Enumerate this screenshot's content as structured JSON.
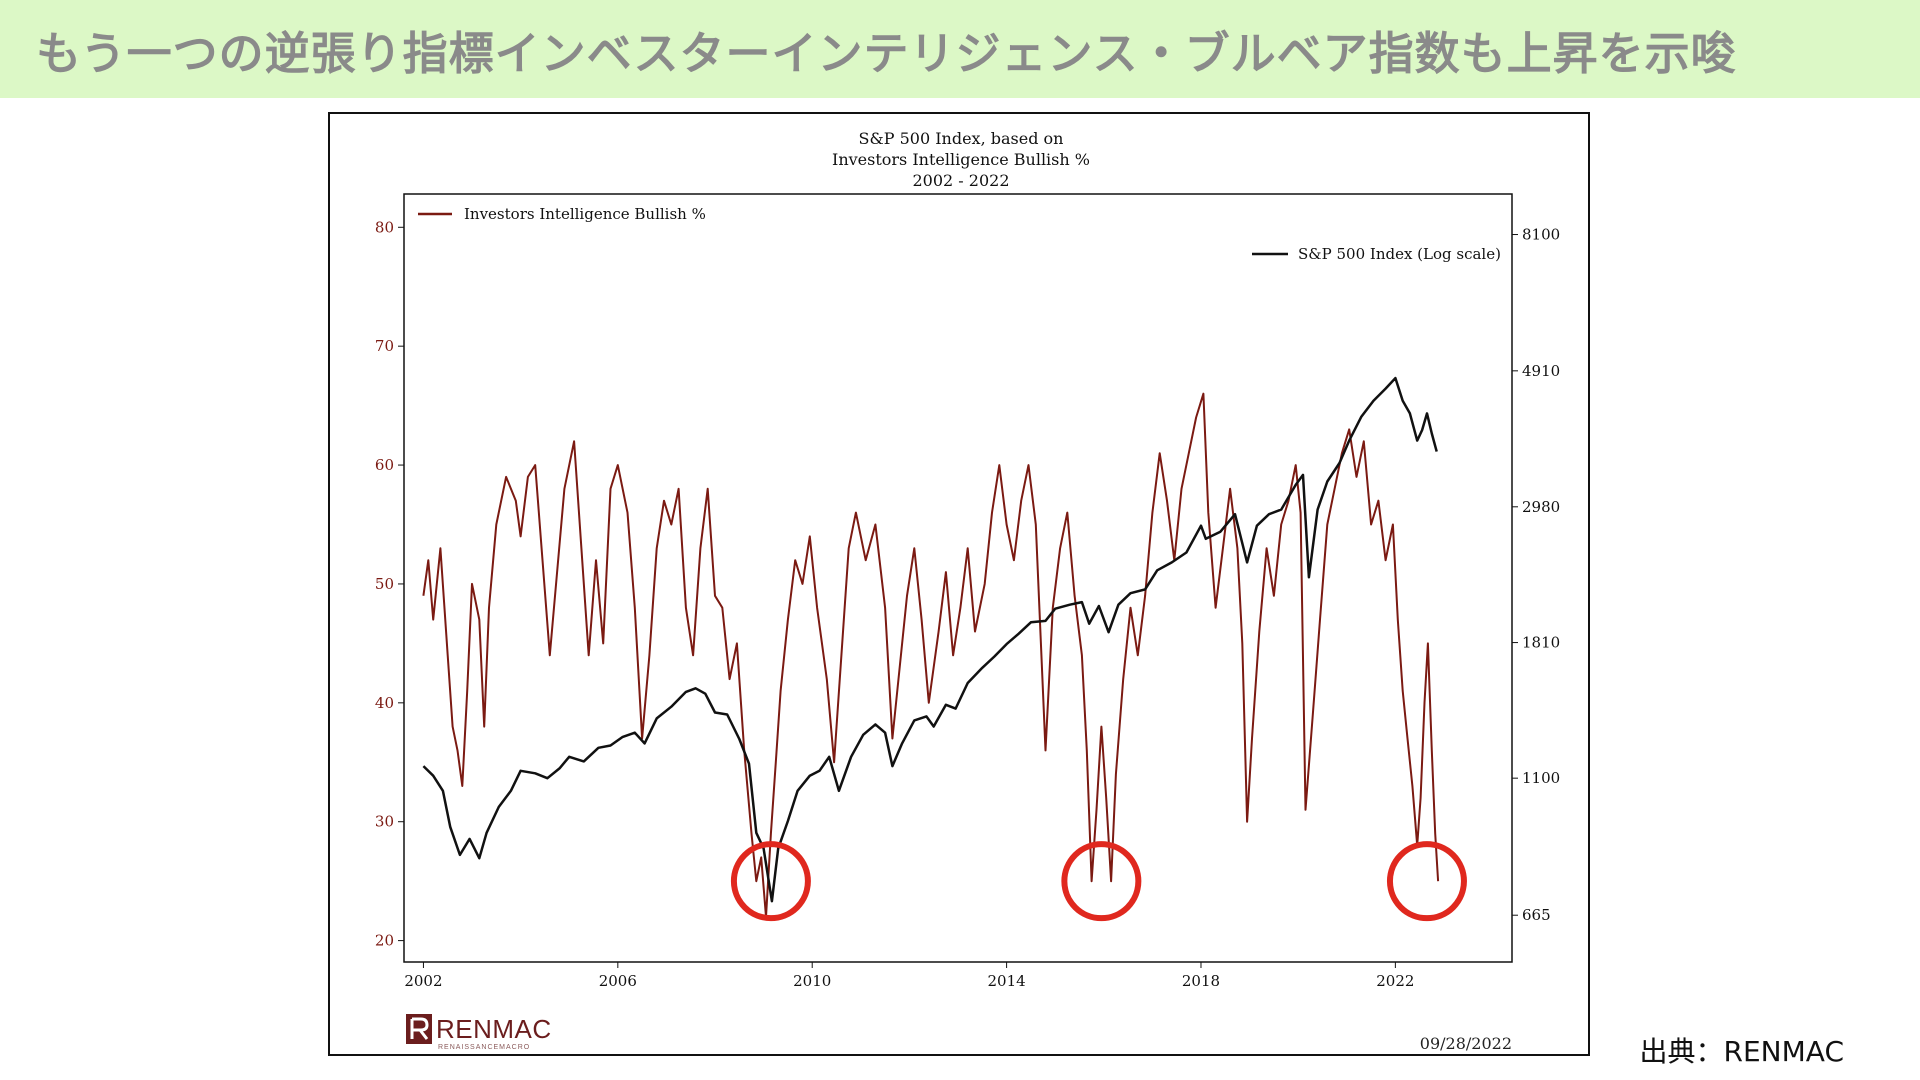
{
  "slide": {
    "title": "もう一つの逆張り指標インベスターインテリジェンス・ブルベア指数も上昇を示唆",
    "source": "出典：RENMAC"
  },
  "brand": {
    "logo_text": "RENMAC",
    "logo_subtext": "RENAISSANCEMACRO",
    "chart_date": "09/28/2022"
  },
  "colors": {
    "bullish": "#7b1a12",
    "sp500": "#111111",
    "circle": "#e0281e",
    "banner": "#dcf8c6"
  },
  "chart_data": {
    "type": "line",
    "title": [
      "S&P 500 Index, based on",
      "Investors Intelligence Bullish %",
      "2002 - 2022"
    ],
    "x_ticks": [
      "2002",
      "2006",
      "2010",
      "2014",
      "2018",
      "2022"
    ],
    "xlim": [
      2001.6,
      2024.4
    ],
    "left_axis": {
      "ticks": [
        "80",
        "70",
        "60",
        "50",
        "40",
        "30",
        "20"
      ],
      "ylim": [
        18.2,
        82.8
      ]
    },
    "right_axis": {
      "ticks": [
        "8100",
        "4910",
        "2980",
        "1810",
        "1100",
        "665"
      ],
      "scale": "log",
      "ylim": [
        560,
        9400
      ]
    },
    "series": [
      {
        "name": "Investors Intelligence Bullish %",
        "axis": "left",
        "points": [
          [
            2002.0,
            49
          ],
          [
            2002.1,
            52
          ],
          [
            2002.2,
            47
          ],
          [
            2002.35,
            53
          ],
          [
            2002.5,
            44
          ],
          [
            2002.6,
            38
          ],
          [
            2002.7,
            36
          ],
          [
            2002.8,
            33
          ],
          [
            2002.9,
            41
          ],
          [
            2003.0,
            50
          ],
          [
            2003.15,
            47
          ],
          [
            2003.25,
            38
          ],
          [
            2003.35,
            48
          ],
          [
            2003.5,
            55
          ],
          [
            2003.7,
            59
          ],
          [
            2003.9,
            57
          ],
          [
            2004.0,
            54
          ],
          [
            2004.15,
            59
          ],
          [
            2004.3,
            60
          ],
          [
            2004.45,
            52
          ],
          [
            2004.6,
            44
          ],
          [
            2004.75,
            51
          ],
          [
            2004.9,
            58
          ],
          [
            2005.1,
            62
          ],
          [
            2005.25,
            53
          ],
          [
            2005.4,
            44
          ],
          [
            2005.55,
            52
          ],
          [
            2005.7,
            45
          ],
          [
            2005.85,
            58
          ],
          [
            2006.0,
            60
          ],
          [
            2006.2,
            56
          ],
          [
            2006.35,
            48
          ],
          [
            2006.5,
            37
          ],
          [
            2006.65,
            44
          ],
          [
            2006.8,
            53
          ],
          [
            2006.95,
            57
          ],
          [
            2007.1,
            55
          ],
          [
            2007.25,
            58
          ],
          [
            2007.4,
            48
          ],
          [
            2007.55,
            44
          ],
          [
            2007.7,
            53
          ],
          [
            2007.85,
            58
          ],
          [
            2008.0,
            49
          ],
          [
            2008.15,
            48
          ],
          [
            2008.3,
            42
          ],
          [
            2008.45,
            45
          ],
          [
            2008.6,
            36
          ],
          [
            2008.75,
            29
          ],
          [
            2008.85,
            25
          ],
          [
            2008.95,
            27
          ],
          [
            2009.05,
            22
          ],
          [
            2009.15,
            29
          ],
          [
            2009.25,
            35
          ],
          [
            2009.35,
            41
          ],
          [
            2009.5,
            47
          ],
          [
            2009.65,
            52
          ],
          [
            2009.8,
            50
          ],
          [
            2009.95,
            54
          ],
          [
            2010.1,
            48
          ],
          [
            2010.3,
            42
          ],
          [
            2010.45,
            35
          ],
          [
            2010.6,
            44
          ],
          [
            2010.75,
            53
          ],
          [
            2010.9,
            56
          ],
          [
            2011.1,
            52
          ],
          [
            2011.3,
            55
          ],
          [
            2011.5,
            48
          ],
          [
            2011.65,
            37
          ],
          [
            2011.8,
            43
          ],
          [
            2011.95,
            49
          ],
          [
            2012.1,
            53
          ],
          [
            2012.25,
            47
          ],
          [
            2012.4,
            40
          ],
          [
            2012.6,
            46
          ],
          [
            2012.75,
            51
          ],
          [
            2012.9,
            44
          ],
          [
            2013.05,
            48
          ],
          [
            2013.2,
            53
          ],
          [
            2013.35,
            46
          ],
          [
            2013.55,
            50
          ],
          [
            2013.7,
            56
          ],
          [
            2013.85,
            60
          ],
          [
            2014.0,
            55
          ],
          [
            2014.15,
            52
          ],
          [
            2014.3,
            57
          ],
          [
            2014.45,
            60
          ],
          [
            2014.6,
            55
          ],
          [
            2014.8,
            36
          ],
          [
            2014.95,
            48
          ],
          [
            2015.1,
            53
          ],
          [
            2015.25,
            56
          ],
          [
            2015.4,
            49
          ],
          [
            2015.55,
            44
          ],
          [
            2015.65,
            36
          ],
          [
            2015.75,
            25
          ],
          [
            2015.85,
            31
          ],
          [
            2015.95,
            38
          ],
          [
            2016.05,
            32
          ],
          [
            2016.15,
            25
          ],
          [
            2016.25,
            34
          ],
          [
            2016.4,
            42
          ],
          [
            2016.55,
            48
          ],
          [
            2016.7,
            44
          ],
          [
            2016.85,
            49
          ],
          [
            2017.0,
            56
          ],
          [
            2017.15,
            61
          ],
          [
            2017.3,
            57
          ],
          [
            2017.45,
            52
          ],
          [
            2017.6,
            58
          ],
          [
            2017.75,
            61
          ],
          [
            2017.9,
            64
          ],
          [
            2018.05,
            66
          ],
          [
            2018.15,
            56
          ],
          [
            2018.3,
            48
          ],
          [
            2018.45,
            53
          ],
          [
            2018.6,
            58
          ],
          [
            2018.75,
            53
          ],
          [
            2018.85,
            45
          ],
          [
            2018.95,
            30
          ],
          [
            2019.05,
            37
          ],
          [
            2019.2,
            46
          ],
          [
            2019.35,
            53
          ],
          [
            2019.5,
            49
          ],
          [
            2019.65,
            55
          ],
          [
            2019.8,
            57
          ],
          [
            2019.95,
            60
          ],
          [
            2020.05,
            56
          ],
          [
            2020.15,
            31
          ],
          [
            2020.3,
            39
          ],
          [
            2020.45,
            47
          ],
          [
            2020.6,
            55
          ],
          [
            2020.75,
            58
          ],
          [
            2020.9,
            61
          ],
          [
            2021.05,
            63
          ],
          [
            2021.2,
            59
          ],
          [
            2021.35,
            62
          ],
          [
            2021.5,
            55
          ],
          [
            2021.65,
            57
          ],
          [
            2021.8,
            52
          ],
          [
            2021.95,
            55
          ],
          [
            2022.05,
            47
          ],
          [
            2022.15,
            41
          ],
          [
            2022.25,
            37
          ],
          [
            2022.35,
            33
          ],
          [
            2022.45,
            28
          ],
          [
            2022.52,
            32
          ],
          [
            2022.6,
            40
          ],
          [
            2022.67,
            45
          ],
          [
            2022.75,
            36
          ],
          [
            2022.82,
            29
          ],
          [
            2022.88,
            25
          ]
        ]
      },
      {
        "name": "S&P 500 Index (Log scale)",
        "axis": "right",
        "points": [
          [
            2002.0,
            1150
          ],
          [
            2002.2,
            1110
          ],
          [
            2002.4,
            1050
          ],
          [
            2002.55,
            920
          ],
          [
            2002.75,
            830
          ],
          [
            2002.95,
            880
          ],
          [
            2003.15,
            820
          ],
          [
            2003.3,
            900
          ],
          [
            2003.55,
            990
          ],
          [
            2003.8,
            1050
          ],
          [
            2004.0,
            1130
          ],
          [
            2004.3,
            1120
          ],
          [
            2004.55,
            1100
          ],
          [
            2004.8,
            1140
          ],
          [
            2005.0,
            1190
          ],
          [
            2005.3,
            1170
          ],
          [
            2005.6,
            1230
          ],
          [
            2005.85,
            1240
          ],
          [
            2006.1,
            1280
          ],
          [
            2006.35,
            1300
          ],
          [
            2006.55,
            1250
          ],
          [
            2006.8,
            1370
          ],
          [
            2007.1,
            1430
          ],
          [
            2007.4,
            1510
          ],
          [
            2007.6,
            1530
          ],
          [
            2007.8,
            1500
          ],
          [
            2008.0,
            1400
          ],
          [
            2008.25,
            1390
          ],
          [
            2008.5,
            1270
          ],
          [
            2008.7,
            1160
          ],
          [
            2008.85,
            900
          ],
          [
            2009.0,
            850
          ],
          [
            2009.17,
            700
          ],
          [
            2009.3,
            850
          ],
          [
            2009.5,
            940
          ],
          [
            2009.7,
            1050
          ],
          [
            2009.95,
            1110
          ],
          [
            2010.15,
            1130
          ],
          [
            2010.35,
            1190
          ],
          [
            2010.55,
            1050
          ],
          [
            2010.8,
            1190
          ],
          [
            2011.05,
            1290
          ],
          [
            2011.3,
            1340
          ],
          [
            2011.5,
            1300
          ],
          [
            2011.65,
            1150
          ],
          [
            2011.85,
            1250
          ],
          [
            2012.1,
            1360
          ],
          [
            2012.35,
            1380
          ],
          [
            2012.5,
            1330
          ],
          [
            2012.75,
            1440
          ],
          [
            2012.95,
            1420
          ],
          [
            2013.2,
            1560
          ],
          [
            2013.5,
            1650
          ],
          [
            2013.75,
            1720
          ],
          [
            2014.0,
            1800
          ],
          [
            2014.25,
            1870
          ],
          [
            2014.5,
            1950
          ],
          [
            2014.8,
            1960
          ],
          [
            2015.0,
            2050
          ],
          [
            2015.3,
            2080
          ],
          [
            2015.55,
            2100
          ],
          [
            2015.7,
            1940
          ],
          [
            2015.9,
            2070
          ],
          [
            2016.1,
            1880
          ],
          [
            2016.3,
            2080
          ],
          [
            2016.55,
            2170
          ],
          [
            2016.85,
            2200
          ],
          [
            2017.1,
            2360
          ],
          [
            2017.4,
            2430
          ],
          [
            2017.7,
            2520
          ],
          [
            2018.0,
            2780
          ],
          [
            2018.1,
            2650
          ],
          [
            2018.4,
            2720
          ],
          [
            2018.7,
            2900
          ],
          [
            2018.95,
            2430
          ],
          [
            2019.15,
            2780
          ],
          [
            2019.4,
            2900
          ],
          [
            2019.65,
            2950
          ],
          [
            2019.95,
            3230
          ],
          [
            2020.1,
            3350
          ],
          [
            2020.22,
            2300
          ],
          [
            2020.4,
            2950
          ],
          [
            2020.6,
            3270
          ],
          [
            2020.85,
            3500
          ],
          [
            2021.05,
            3800
          ],
          [
            2021.3,
            4150
          ],
          [
            2021.55,
            4400
          ],
          [
            2021.8,
            4600
          ],
          [
            2022.0,
            4780
          ],
          [
            2022.15,
            4400
          ],
          [
            2022.3,
            4200
          ],
          [
            2022.45,
            3800
          ],
          [
            2022.55,
            3950
          ],
          [
            2022.65,
            4200
          ],
          [
            2022.75,
            3900
          ],
          [
            2022.85,
            3650
          ]
        ]
      }
    ],
    "legend": {
      "left_series": "top-left",
      "right_series": "top-right"
    },
    "annotations": [
      {
        "type": "circle",
        "x": 2009.15,
        "y": 25
      },
      {
        "type": "circle",
        "x": 2015.95,
        "y": 25
      },
      {
        "type": "circle",
        "x": 2022.65,
        "y": 25
      }
    ],
    "grid": false
  }
}
